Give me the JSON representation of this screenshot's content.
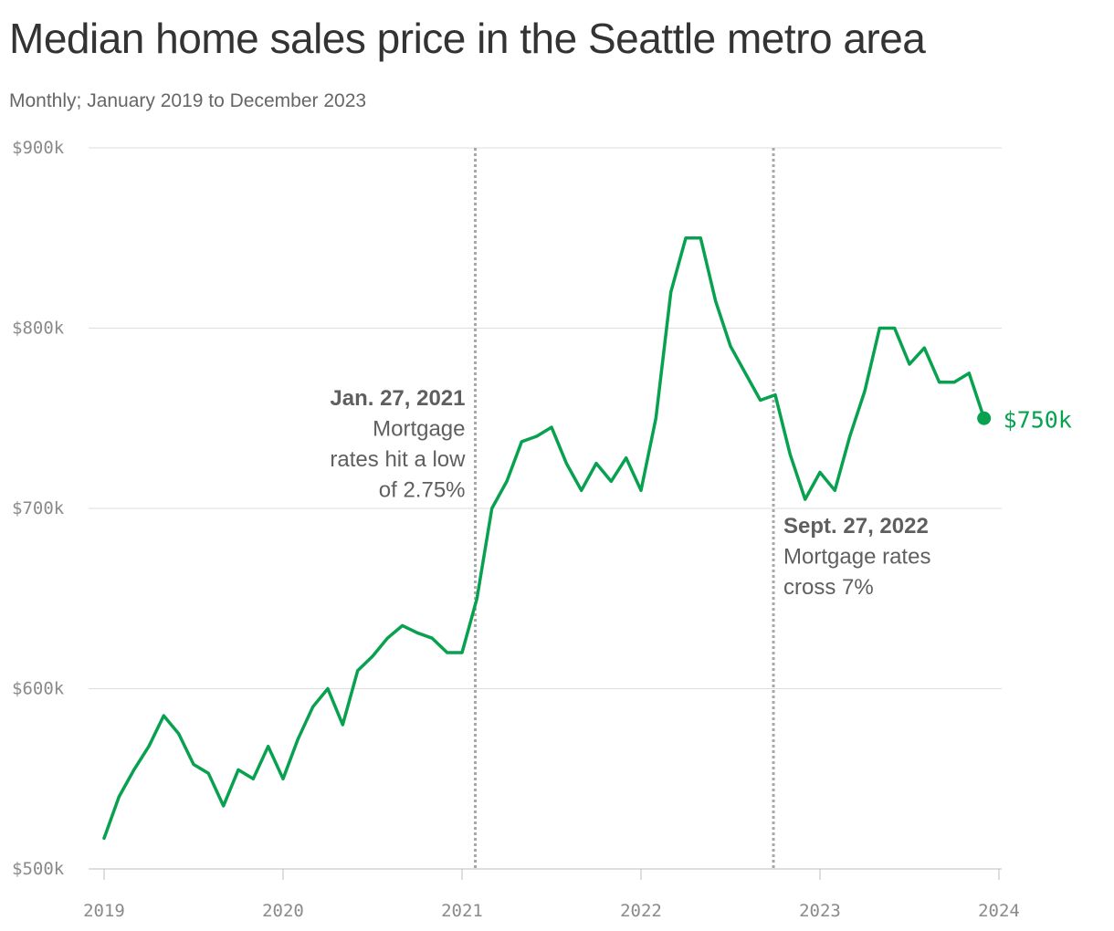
{
  "page": {
    "title": "Median home sales price in the Seattle metro area",
    "subtitle": "Monthly; January 2019 to December 2023"
  },
  "chart_data": {
    "type": "line",
    "title": "Median home sales price in the Seattle metro area",
    "subtitle": "Monthly; January 2019 to December 2023",
    "xlabel": "",
    "ylabel": "",
    "xlim": [
      2019,
      2024
    ],
    "ylim": [
      500000,
      900000
    ],
    "grid": true,
    "y_ticks": [
      {
        "value": 500000,
        "label": "$500k"
      },
      {
        "value": 600000,
        "label": "$600k"
      },
      {
        "value": 700000,
        "label": "$700k"
      },
      {
        "value": 800000,
        "label": "$800k"
      },
      {
        "value": 900000,
        "label": "$900k"
      }
    ],
    "x_ticks": [
      {
        "value": 2019,
        "label": "2019"
      },
      {
        "value": 2020,
        "label": "2020"
      },
      {
        "value": 2021,
        "label": "2021"
      },
      {
        "value": 2022,
        "label": "2022"
      },
      {
        "value": 2023,
        "label": "2023"
      },
      {
        "value": 2024,
        "label": "2024"
      }
    ],
    "line_color": "#08a14f",
    "series": [
      {
        "x": [
          "2019-01",
          "2019-02",
          "2019-03",
          "2019-04",
          "2019-05",
          "2019-06",
          "2019-07",
          "2019-08",
          "2019-09",
          "2019-10",
          "2019-11",
          "2019-12",
          "2020-01",
          "2020-02",
          "2020-03",
          "2020-04",
          "2020-05",
          "2020-06",
          "2020-07",
          "2020-08",
          "2020-09",
          "2020-10",
          "2020-11",
          "2020-12",
          "2021-01",
          "2021-02",
          "2021-03",
          "2021-04",
          "2021-05",
          "2021-06",
          "2021-07",
          "2021-08",
          "2021-09",
          "2021-10",
          "2021-11",
          "2021-12",
          "2022-01",
          "2022-02",
          "2022-03",
          "2022-04",
          "2022-05",
          "2022-06",
          "2022-07",
          "2022-08",
          "2022-09",
          "2022-10",
          "2022-11",
          "2022-12",
          "2023-01",
          "2023-02",
          "2023-03",
          "2023-04",
          "2023-05",
          "2023-06",
          "2023-07",
          "2023-08",
          "2023-09",
          "2023-10",
          "2023-11",
          "2023-12"
        ],
        "values": [
          517000,
          540000,
          555000,
          568000,
          585000,
          575000,
          558000,
          553000,
          535000,
          555000,
          550000,
          568000,
          550000,
          572000,
          590000,
          600000,
          580000,
          610000,
          618000,
          628000,
          635000,
          631000,
          628000,
          620000,
          620000,
          650000,
          700000,
          715000,
          737000,
          740000,
          745000,
          725000,
          710000,
          725000,
          715000,
          728000,
          710000,
          750000,
          820000,
          850000,
          850000,
          815000,
          790000,
          775000,
          760000,
          763000,
          730000,
          705000,
          720000,
          710000,
          740000,
          765000,
          800000,
          800000,
          780000,
          789000,
          770000,
          770000,
          775000,
          750000
        ]
      }
    ],
    "end_label": "$750k",
    "annotations": [
      {
        "date": "2021-01-27",
        "x": 2021.074,
        "title": "Jan. 27, 2021",
        "lines": [
          "Mortgage",
          "rates hit a low",
          "of 2.75%"
        ],
        "side": "left"
      },
      {
        "date": "2022-09-27",
        "x": 2022.74,
        "title": "Sept. 27, 2022",
        "lines": [
          "Mortgage rates",
          "cross 7%"
        ],
        "side": "right"
      }
    ]
  }
}
